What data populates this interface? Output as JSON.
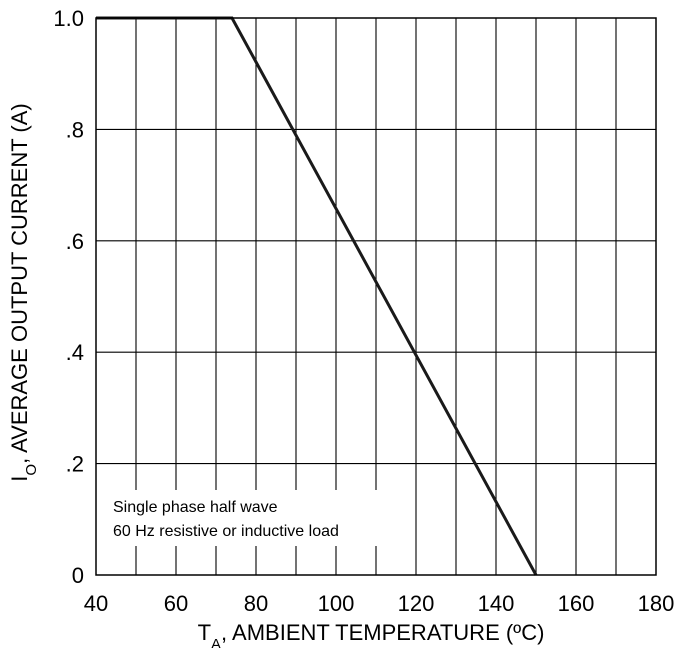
{
  "chart_data": {
    "type": "line",
    "x_ticks": [
      40,
      60,
      80,
      100,
      120,
      140,
      160,
      180
    ],
    "x_tick_labels": [
      "40",
      "60",
      "80",
      "100",
      "120",
      "140",
      "160",
      "180"
    ],
    "y_ticks": [
      0,
      0.2,
      0.4,
      0.6,
      0.8,
      1.0
    ],
    "y_tick_labels": [
      "0",
      ".2",
      ".4",
      ".6",
      ".8",
      "1.0"
    ],
    "xlim": [
      40,
      180
    ],
    "ylim": [
      0,
      1.0
    ],
    "x_minor_step": 10,
    "grid": true,
    "xlabel": {
      "main": "T",
      "sub": "A",
      "rest": ", AMBIENT TEMPERATURE (ºC)"
    },
    "ylabel": {
      "main": "I",
      "sub": "O",
      "rest": ", AVERAGE OUTPUT CURRENT (A)"
    },
    "annotation": [
      "Single phase half wave",
      "60 Hz resistive or inductive load"
    ],
    "series": [
      {
        "x": [
          40,
          74,
          150
        ],
        "y": [
          1.0,
          1.0,
          0
        ],
        "color": "#1a1a1a"
      }
    ]
  }
}
